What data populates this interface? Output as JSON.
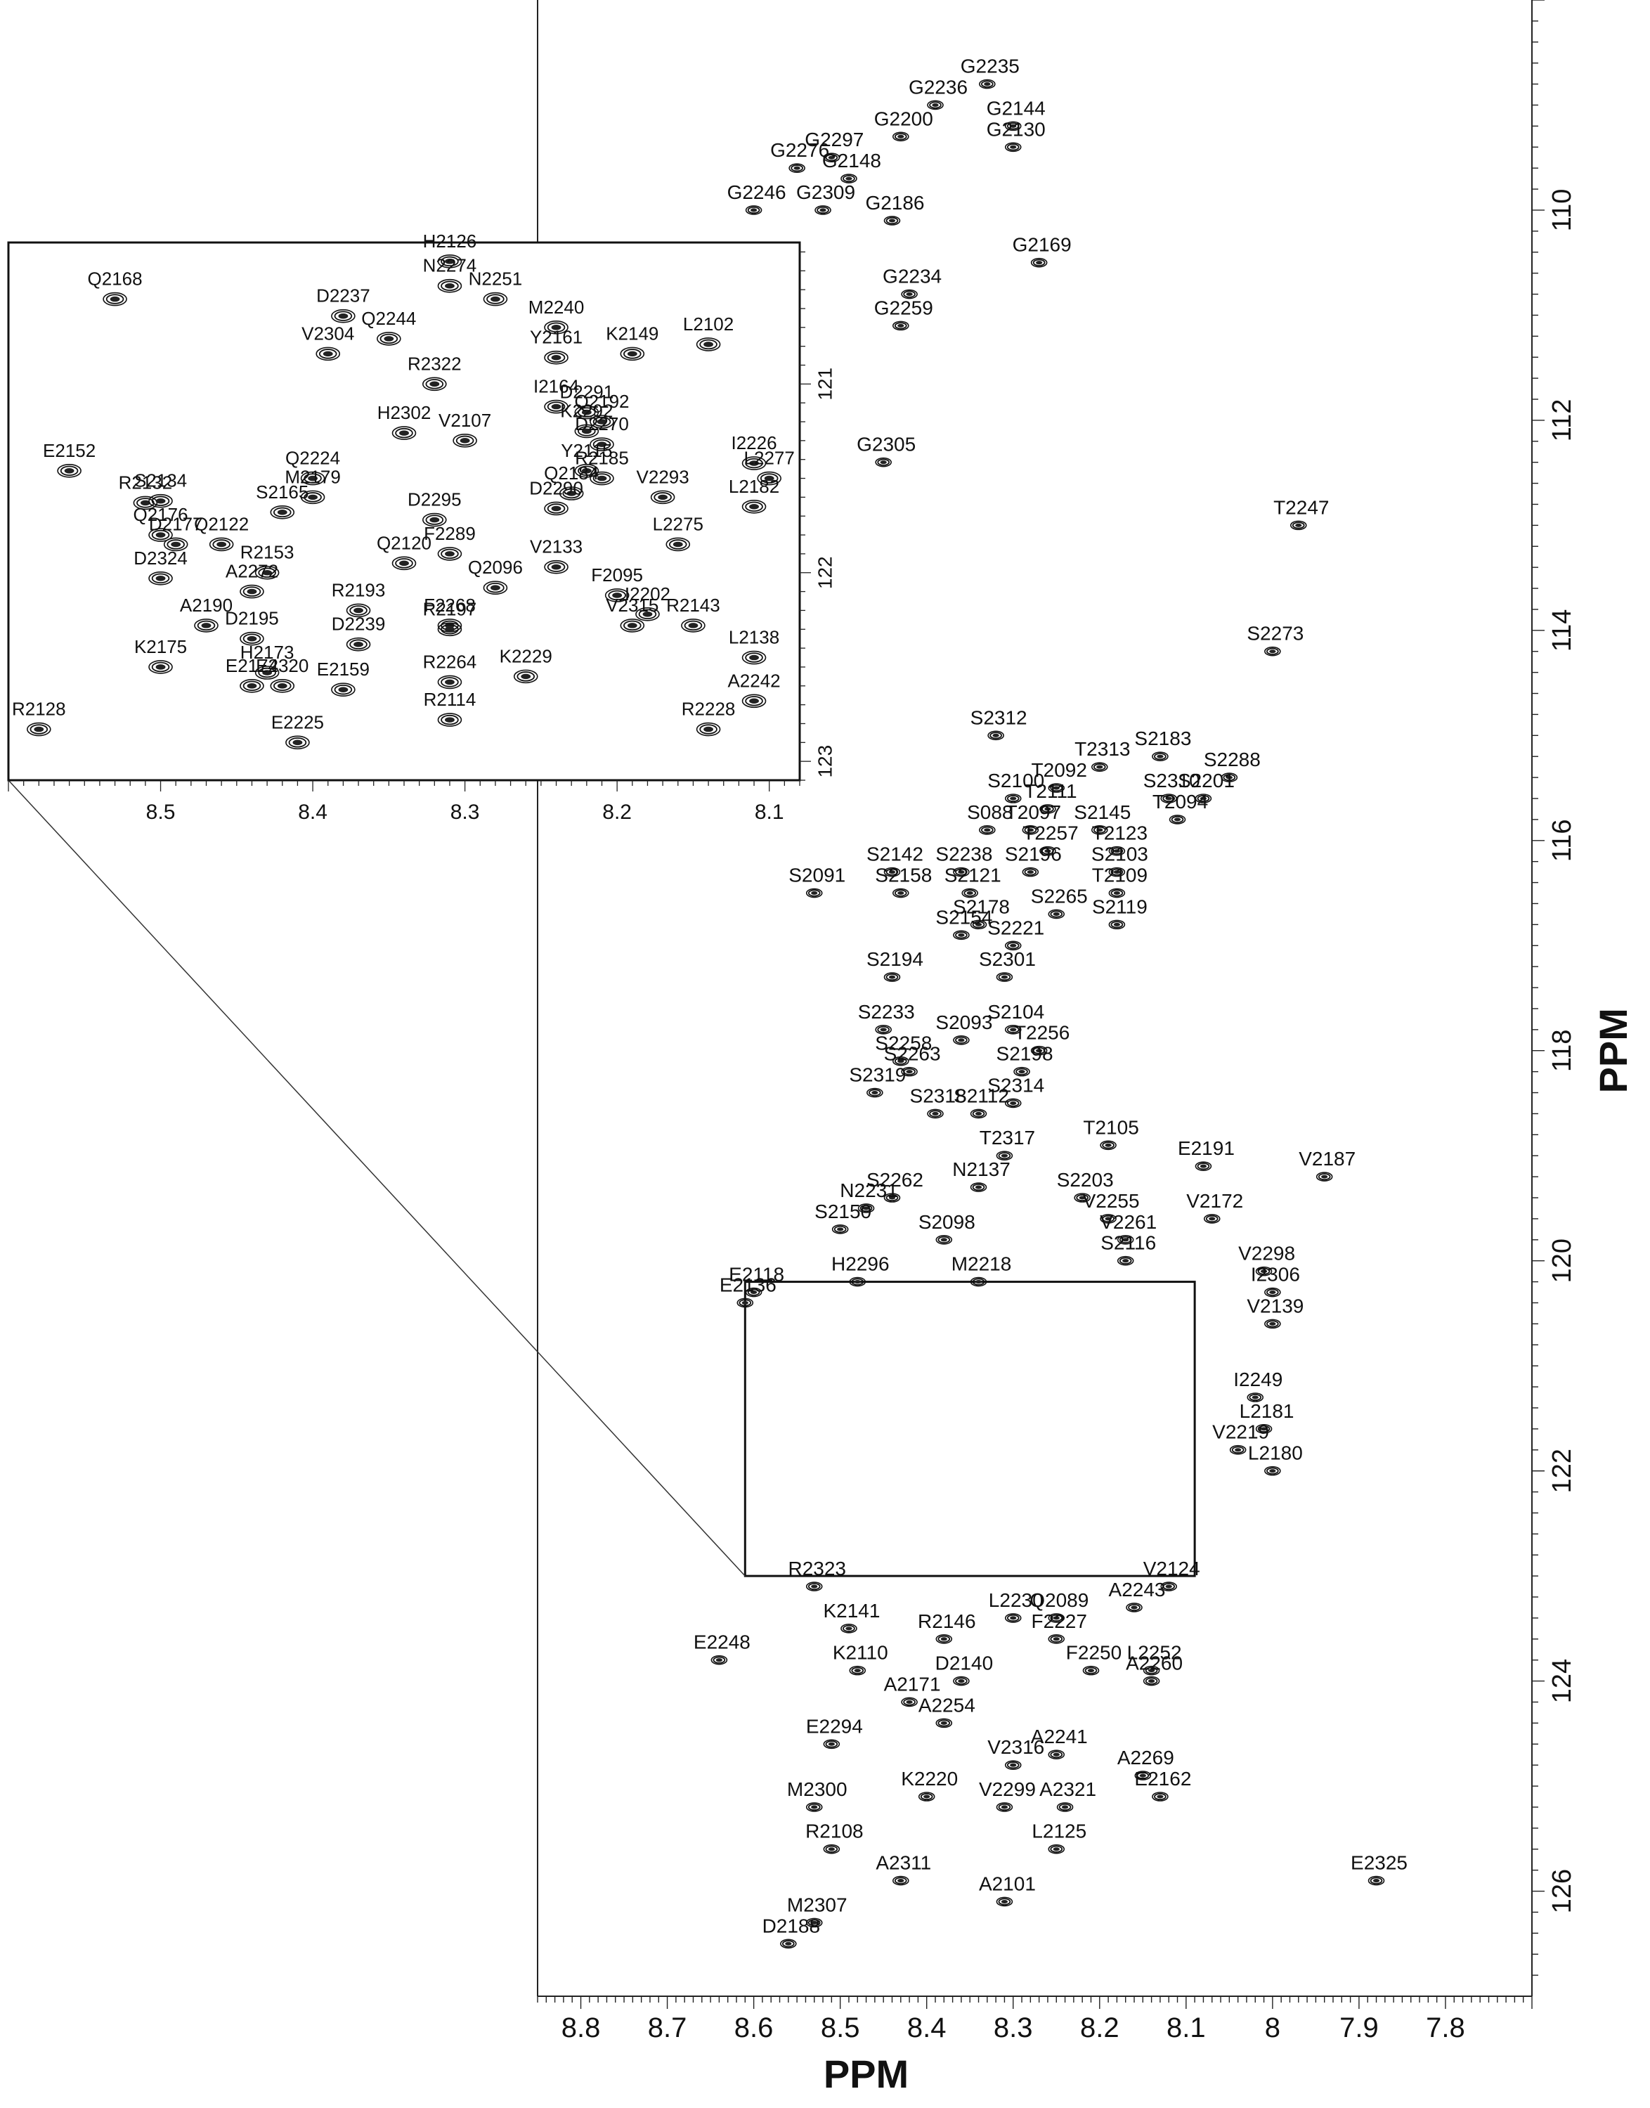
{
  "chart_data": [
    {
      "type": "scatter",
      "panel": "main",
      "xlabel": "PPM",
      "ylabel": "PPM",
      "xlim": [
        8.85,
        7.7
      ],
      "ylim": [
        108,
        127
      ],
      "x_ticks": [
        "8.8",
        "8.7",
        "8.6",
        "8.5",
        "8.4",
        "8.3",
        "8.2",
        "8.1",
        "8",
        "7.9",
        "7.8"
      ],
      "y_ticks": [
        "110",
        "112",
        "114",
        "116",
        "118",
        "120",
        "122",
        "124",
        "126"
      ],
      "peaks": [
        {
          "label": "G2235",
          "x": 8.33,
          "y": 108.8
        },
        {
          "label": "G2236",
          "x": 8.39,
          "y": 109.0
        },
        {
          "label": "G2200",
          "x": 8.43,
          "y": 109.3
        },
        {
          "label": "G2144",
          "x": 8.3,
          "y": 109.2
        },
        {
          "label": "G2297",
          "x": 8.51,
          "y": 109.5
        },
        {
          "label": "G2130",
          "x": 8.3,
          "y": 109.4
        },
        {
          "label": "G2276",
          "x": 8.55,
          "y": 109.6
        },
        {
          "label": "G2148",
          "x": 8.49,
          "y": 109.7
        },
        {
          "label": "G2246",
          "x": 8.6,
          "y": 110.0
        },
        {
          "label": "G2309",
          "x": 8.52,
          "y": 110.0
        },
        {
          "label": "G2186",
          "x": 8.44,
          "y": 110.1
        },
        {
          "label": "G2169",
          "x": 8.27,
          "y": 110.5
        },
        {
          "label": "G2234",
          "x": 8.42,
          "y": 110.8
        },
        {
          "label": "G2259",
          "x": 8.43,
          "y": 111.1
        },
        {
          "label": "G2305",
          "x": 8.45,
          "y": 112.4
        },
        {
          "label": "T2247",
          "x": 7.97,
          "y": 113.0
        },
        {
          "label": "S2273",
          "x": 8.0,
          "y": 114.2
        },
        {
          "label": "S2312",
          "x": 8.32,
          "y": 115.0
        },
        {
          "label": "T2313",
          "x": 8.2,
          "y": 115.3
        },
        {
          "label": "S2183",
          "x": 8.13,
          "y": 115.2
        },
        {
          "label": "S2288",
          "x": 8.05,
          "y": 115.4
        },
        {
          "label": "T2092",
          "x": 8.25,
          "y": 115.5
        },
        {
          "label": "S2100",
          "x": 8.3,
          "y": 115.6
        },
        {
          "label": "T2111",
          "x": 8.26,
          "y": 115.7
        },
        {
          "label": "S2310",
          "x": 8.12,
          "y": 115.6
        },
        {
          "label": "S2201",
          "x": 8.08,
          "y": 115.6
        },
        {
          "label": "T2094",
          "x": 8.11,
          "y": 115.8
        },
        {
          "label": "S088",
          "x": 8.33,
          "y": 115.9
        },
        {
          "label": "T2097",
          "x": 8.28,
          "y": 115.9
        },
        {
          "label": "S2145",
          "x": 8.2,
          "y": 115.9
        },
        {
          "label": "T2257",
          "x": 8.26,
          "y": 116.1
        },
        {
          "label": "T2123",
          "x": 8.18,
          "y": 116.1
        },
        {
          "label": "S2142",
          "x": 8.44,
          "y": 116.3
        },
        {
          "label": "S2238",
          "x": 8.36,
          "y": 116.3
        },
        {
          "label": "S2196",
          "x": 8.28,
          "y": 116.3
        },
        {
          "label": "S2103",
          "x": 8.18,
          "y": 116.3
        },
        {
          "label": "S2091",
          "x": 8.53,
          "y": 116.5
        },
        {
          "label": "S2121",
          "x": 8.35,
          "y": 116.5
        },
        {
          "label": "S2158",
          "x": 8.43,
          "y": 116.5
        },
        {
          "label": "T2109",
          "x": 8.18,
          "y": 116.5
        },
        {
          "label": "S2178",
          "x": 8.34,
          "y": 116.8
        },
        {
          "label": "S2265",
          "x": 8.25,
          "y": 116.7
        },
        {
          "label": "S2119",
          "x": 8.18,
          "y": 116.8
        },
        {
          "label": "S2154",
          "x": 8.36,
          "y": 116.9
        },
        {
          "label": "S2221",
          "x": 8.3,
          "y": 117.0
        },
        {
          "label": "S2194",
          "x": 8.44,
          "y": 117.3
        },
        {
          "label": "S2301",
          "x": 8.31,
          "y": 117.3
        },
        {
          "label": "S2233",
          "x": 8.45,
          "y": 117.8
        },
        {
          "label": "S2093",
          "x": 8.36,
          "y": 117.9
        },
        {
          "label": "S2104",
          "x": 8.3,
          "y": 117.8
        },
        {
          "label": "T2256",
          "x": 8.27,
          "y": 118.0
        },
        {
          "label": "S2258",
          "x": 8.43,
          "y": 118.1
        },
        {
          "label": "S2263",
          "x": 8.42,
          "y": 118.2
        },
        {
          "label": "S2198",
          "x": 8.29,
          "y": 118.2
        },
        {
          "label": "S2319",
          "x": 8.46,
          "y": 118.4
        },
        {
          "label": "S2314",
          "x": 8.3,
          "y": 118.5
        },
        {
          "label": "S2318",
          "x": 8.39,
          "y": 118.6
        },
        {
          "label": "S2112",
          "x": 8.34,
          "y": 118.6
        },
        {
          "label": "T2105",
          "x": 8.19,
          "y": 118.9
        },
        {
          "label": "T2317",
          "x": 8.31,
          "y": 119.0
        },
        {
          "label": "E2191",
          "x": 8.08,
          "y": 119.1
        },
        {
          "label": "V2187",
          "x": 7.94,
          "y": 119.2
        },
        {
          "label": "S2262",
          "x": 8.44,
          "y": 119.4
        },
        {
          "label": "N2137",
          "x": 8.34,
          "y": 119.3
        },
        {
          "label": "N2231",
          "x": 8.47,
          "y": 119.5
        },
        {
          "label": "S2203",
          "x": 8.22,
          "y": 119.4
        },
        {
          "label": "V2255",
          "x": 8.19,
          "y": 119.6
        },
        {
          "label": "V2172",
          "x": 8.07,
          "y": 119.6
        },
        {
          "label": "S2150",
          "x": 8.5,
          "y": 119.7
        },
        {
          "label": "S2098",
          "x": 8.38,
          "y": 119.8
        },
        {
          "label": "V2261",
          "x": 8.17,
          "y": 119.8
        },
        {
          "label": "V2298",
          "x": 8.01,
          "y": 120.1
        },
        {
          "label": "E2118",
          "x": 8.6,
          "y": 120.3
        },
        {
          "label": "H2296",
          "x": 8.48,
          "y": 120.2
        },
        {
          "label": "M2218",
          "x": 8.34,
          "y": 120.2
        },
        {
          "label": "S2116",
          "x": 8.17,
          "y": 120.0
        },
        {
          "label": "I2306",
          "x": 8.0,
          "y": 120.3
        },
        {
          "label": "E2136",
          "x": 8.61,
          "y": 120.4
        },
        {
          "label": "V2139",
          "x": 8.0,
          "y": 120.6
        },
        {
          "label": "I2249",
          "x": 8.02,
          "y": 121.3
        },
        {
          "label": "L2181",
          "x": 8.01,
          "y": 121.6
        },
        {
          "label": "V2219",
          "x": 8.04,
          "y": 121.8
        },
        {
          "label": "L2180",
          "x": 8.0,
          "y": 122.0
        },
        {
          "label": "R2323",
          "x": 8.53,
          "y": 123.1
        },
        {
          "label": "L2230",
          "x": 8.3,
          "y": 123.4
        },
        {
          "label": "Q2089",
          "x": 8.25,
          "y": 123.4
        },
        {
          "label": "A2243",
          "x": 8.16,
          "y": 123.3
        },
        {
          "label": "V2124",
          "x": 8.12,
          "y": 123.1
        },
        {
          "label": "K2141",
          "x": 8.49,
          "y": 123.5
        },
        {
          "label": "R2146",
          "x": 8.38,
          "y": 123.6
        },
        {
          "label": "F2227",
          "x": 8.25,
          "y": 123.6
        },
        {
          "label": "E2248",
          "x": 8.64,
          "y": 123.8
        },
        {
          "label": "L2252",
          "x": 8.14,
          "y": 123.9
        },
        {
          "label": "F2250",
          "x": 8.21,
          "y": 123.9
        },
        {
          "label": "K2110",
          "x": 8.48,
          "y": 123.9
        },
        {
          "label": "A2260",
          "x": 8.14,
          "y": 124.0
        },
        {
          "label": "D2140",
          "x": 8.36,
          "y": 124.0
        },
        {
          "label": "A2171",
          "x": 8.42,
          "y": 124.2
        },
        {
          "label": "A2254",
          "x": 8.38,
          "y": 124.4
        },
        {
          "label": "E2294",
          "x": 8.51,
          "y": 124.6
        },
        {
          "label": "A2241",
          "x": 8.25,
          "y": 124.7
        },
        {
          "label": "V2316",
          "x": 8.3,
          "y": 124.8
        },
        {
          "label": "A2269",
          "x": 8.15,
          "y": 124.9
        },
        {
          "label": "K2220",
          "x": 8.4,
          "y": 125.1
        },
        {
          "label": "M2300",
          "x": 8.53,
          "y": 125.2
        },
        {
          "label": "E2162",
          "x": 8.13,
          "y": 125.1
        },
        {
          "label": "V2299",
          "x": 8.31,
          "y": 125.2
        },
        {
          "label": "A2321",
          "x": 8.24,
          "y": 125.2
        },
        {
          "label": "R2108",
          "x": 8.51,
          "y": 125.6
        },
        {
          "label": "L2125",
          "x": 8.25,
          "y": 125.6
        },
        {
          "label": "E2325",
          "x": 7.88,
          "y": 125.9
        },
        {
          "label": "A2311",
          "x": 8.43,
          "y": 125.9
        },
        {
          "label": "A2101",
          "x": 8.31,
          "y": 126.1
        },
        {
          "label": "M2307",
          "x": 8.53,
          "y": 126.3
        },
        {
          "label": "D2188",
          "x": 8.56,
          "y": 126.5
        }
      ],
      "inset_box": {
        "x_range": [
          8.61,
          8.09
        ],
        "y_range": [
          120.2,
          123.0
        ]
      }
    },
    {
      "type": "scatter",
      "panel": "inset",
      "xlim": [
        8.6,
        8.08
      ],
      "ylim": [
        120.25,
        123.1
      ],
      "x_ticks": [
        "8.5",
        "8.4",
        "8.3",
        "8.2",
        "8.1"
      ],
      "y_ticks": [
        "121",
        "122",
        "123"
      ],
      "peaks": [
        {
          "label": "Q2168",
          "x": 8.53,
          "y": 120.55
        },
        {
          "label": "H2126",
          "x": 8.31,
          "y": 120.35
        },
        {
          "label": "N2274",
          "x": 8.31,
          "y": 120.48
        },
        {
          "label": "N2251",
          "x": 8.28,
          "y": 120.55
        },
        {
          "label": "D2237",
          "x": 8.38,
          "y": 120.64
        },
        {
          "label": "M2240",
          "x": 8.24,
          "y": 120.7
        },
        {
          "label": "K2149",
          "x": 8.19,
          "y": 120.84
        },
        {
          "label": "L2102",
          "x": 8.14,
          "y": 120.79
        },
        {
          "label": "Q2244",
          "x": 8.35,
          "y": 120.76
        },
        {
          "label": "V2304",
          "x": 8.39,
          "y": 120.84
        },
        {
          "label": "Y2161",
          "x": 8.24,
          "y": 120.86
        },
        {
          "label": "R2322",
          "x": 8.32,
          "y": 121.0
        },
        {
          "label": "I2164",
          "x": 8.24,
          "y": 121.12
        },
        {
          "label": "D2291",
          "x": 8.22,
          "y": 121.15
        },
        {
          "label": "Q2192",
          "x": 8.21,
          "y": 121.2
        },
        {
          "label": "H2302",
          "x": 8.34,
          "y": 121.26
        },
        {
          "label": "V2107",
          "x": 8.3,
          "y": 121.3
        },
        {
          "label": "K2292",
          "x": 8.22,
          "y": 121.25
        },
        {
          "label": "D2270",
          "x": 8.21,
          "y": 121.32
        },
        {
          "label": "I2226",
          "x": 8.11,
          "y": 121.42
        },
        {
          "label": "E2152",
          "x": 8.56,
          "y": 121.46
        },
        {
          "label": "Q2224",
          "x": 8.4,
          "y": 121.5
        },
        {
          "label": "M2179",
          "x": 8.4,
          "y": 121.6
        },
        {
          "label": "Y2115",
          "x": 8.22,
          "y": 121.46
        },
        {
          "label": "R2185",
          "x": 8.21,
          "y": 121.5
        },
        {
          "label": "L2277",
          "x": 8.1,
          "y": 121.5
        },
        {
          "label": "R2132",
          "x": 8.51,
          "y": 121.63
        },
        {
          "label": "S2134",
          "x": 8.5,
          "y": 121.62
        },
        {
          "label": "S2165",
          "x": 8.42,
          "y": 121.68
        },
        {
          "label": "Q2184",
          "x": 8.23,
          "y": 121.58
        },
        {
          "label": "V2293",
          "x": 8.17,
          "y": 121.6
        },
        {
          "label": "D2295",
          "x": 8.32,
          "y": 121.72
        },
        {
          "label": "L2182",
          "x": 8.11,
          "y": 121.65
        },
        {
          "label": "D2177",
          "x": 8.49,
          "y": 121.85
        },
        {
          "label": "Q2122",
          "x": 8.46,
          "y": 121.85
        },
        {
          "label": "D2290",
          "x": 8.24,
          "y": 121.66
        },
        {
          "label": "L2275",
          "x": 8.16,
          "y": 121.85
        },
        {
          "label": "Q2176",
          "x": 8.5,
          "y": 121.8
        },
        {
          "label": "F2289",
          "x": 8.31,
          "y": 121.9
        },
        {
          "label": "Q2120",
          "x": 8.34,
          "y": 121.95
        },
        {
          "label": "Q2096",
          "x": 8.28,
          "y": 122.08
        },
        {
          "label": "R2153",
          "x": 8.43,
          "y": 122.0
        },
        {
          "label": "V2133",
          "x": 8.24,
          "y": 121.97
        },
        {
          "label": "D2324",
          "x": 8.5,
          "y": 122.03
        },
        {
          "label": "F2095",
          "x": 8.2,
          "y": 122.12
        },
        {
          "label": "R2193",
          "x": 8.37,
          "y": 122.2
        },
        {
          "label": "I2202",
          "x": 8.18,
          "y": 122.22
        },
        {
          "label": "A2272",
          "x": 8.44,
          "y": 122.1
        },
        {
          "label": "F2268",
          "x": 8.31,
          "y": 122.28
        },
        {
          "label": "A2190",
          "x": 8.47,
          "y": 122.28
        },
        {
          "label": "R2143",
          "x": 8.15,
          "y": 122.28
        },
        {
          "label": "D2195",
          "x": 8.44,
          "y": 122.35
        },
        {
          "label": "D2239",
          "x": 8.37,
          "y": 122.38
        },
        {
          "label": "R2197",
          "x": 8.31,
          "y": 122.3
        },
        {
          "label": "V2315",
          "x": 8.19,
          "y": 122.28
        },
        {
          "label": "K2175",
          "x": 8.5,
          "y": 122.5
        },
        {
          "label": "L2138",
          "x": 8.11,
          "y": 122.45
        },
        {
          "label": "H2173",
          "x": 8.43,
          "y": 122.53
        },
        {
          "label": "E2320",
          "x": 8.42,
          "y": 122.6
        },
        {
          "label": "E2159",
          "x": 8.38,
          "y": 122.62
        },
        {
          "label": "R2264",
          "x": 8.31,
          "y": 122.58
        },
        {
          "label": "K2229",
          "x": 8.26,
          "y": 122.55
        },
        {
          "label": "E2174",
          "x": 8.44,
          "y": 122.6
        },
        {
          "label": "A2242",
          "x": 8.11,
          "y": 122.68
        },
        {
          "label": "E2225",
          "x": 8.41,
          "y": 122.9
        },
        {
          "label": "R2114",
          "x": 8.31,
          "y": 122.78
        },
        {
          "label": "R2128",
          "x": 8.58,
          "y": 122.83
        },
        {
          "label": "R2228",
          "x": 8.14,
          "y": 122.83
        }
      ]
    }
  ]
}
